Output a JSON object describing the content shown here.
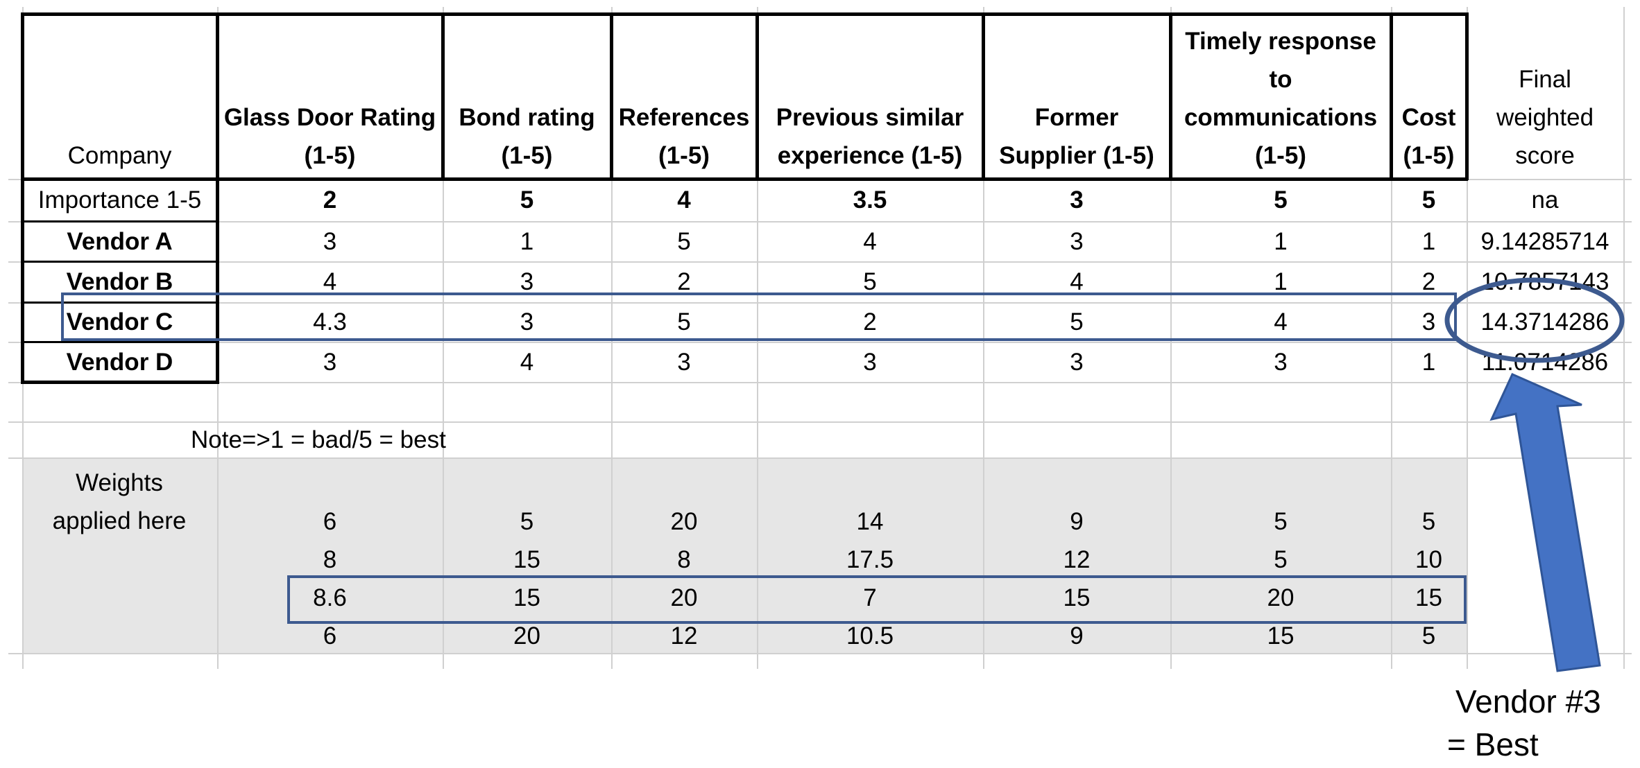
{
  "table": {
    "headers": [
      [
        "Company"
      ],
      [
        "Glass Door Rating",
        "(1-5)"
      ],
      [
        "Bond rating",
        "(1-5)"
      ],
      [
        "References",
        "(1-5)"
      ],
      [
        "Previous similar",
        "experience (1-5)"
      ],
      [
        "Former",
        "Supplier (1-5)"
      ],
      [
        "Timely response",
        "to",
        "communications",
        "(1-5)"
      ],
      [
        "Cost",
        "(1-5)"
      ],
      [
        "Final",
        "weighted",
        "score"
      ]
    ],
    "importance_row": [
      "Importance 1-5",
      "2",
      "5",
      "4",
      "3.5",
      "3",
      "5",
      "5",
      "na"
    ],
    "vendor_rows": [
      [
        "Vendor A",
        "3",
        "1",
        "5",
        "4",
        "3",
        "1",
        "1",
        "9.14285714"
      ],
      [
        "Vendor B",
        "4",
        "3",
        "2",
        "5",
        "4",
        "1",
        "2",
        "10.7857143"
      ],
      [
        "Vendor C",
        "4.3",
        "3",
        "5",
        "2",
        "5",
        "4",
        "3",
        "14.3714286"
      ],
      [
        "Vendor D",
        "3",
        "4",
        "3",
        "3",
        "3",
        "3",
        "1",
        "11.0714286"
      ]
    ],
    "note": "Note=>1 = bad/5 = best",
    "weights_label": [
      "Weights",
      "applied here"
    ],
    "weights_rows": [
      [
        "6",
        "5",
        "20",
        "14",
        "9",
        "5",
        "5"
      ],
      [
        "8",
        "15",
        "8",
        "17.5",
        "12",
        "5",
        "10"
      ],
      [
        "8.6",
        "15",
        "20",
        "7",
        "15",
        "20",
        "15"
      ],
      [
        "6",
        "20",
        "12",
        "10.5",
        "9",
        "15",
        "5"
      ]
    ]
  },
  "annotation": {
    "lines": [
      "Vendor #3",
      "= Best"
    ],
    "highlight_color": "#3d5a8f",
    "arrow_color": "#4472c4"
  }
}
